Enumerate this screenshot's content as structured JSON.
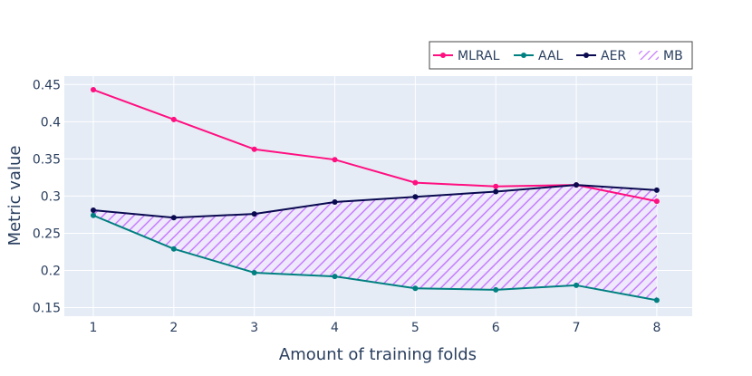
{
  "chart_data": {
    "type": "line",
    "title": "",
    "xlabel": "Amount of training folds",
    "ylabel": "Metric value",
    "x": [
      1,
      2,
      3,
      4,
      5,
      6,
      7,
      8
    ],
    "xlim": [
      0.64,
      8.44
    ],
    "ylim": [
      0.1385,
      0.4613
    ],
    "x_ticks": [
      "1",
      "2",
      "3",
      "4",
      "5",
      "6",
      "7",
      "8"
    ],
    "y_ticks": [
      "0.15",
      "0.2",
      "0.25",
      "0.3",
      "0.35",
      "0.4",
      "0.45"
    ],
    "grid": true,
    "legend_position": "top-right",
    "series": [
      {
        "name": "MLRAL",
        "color": "#ff0f80",
        "values": [
          0.443,
          0.403,
          0.363,
          0.349,
          0.318,
          0.313,
          0.315,
          0.293
        ]
      },
      {
        "name": "AAL",
        "color": "#008080",
        "values": [
          0.274,
          0.229,
          0.197,
          0.192,
          0.176,
          0.174,
          0.18,
          0.16
        ]
      },
      {
        "name": "AER",
        "color": "#0a0a50",
        "values": [
          0.281,
          0.271,
          0.276,
          0.292,
          0.299,
          0.306,
          0.315,
          0.308
        ]
      }
    ],
    "band": {
      "name": "MB",
      "color": "#c77dff",
      "lower_series": "AAL",
      "upper_series": "AER"
    }
  }
}
